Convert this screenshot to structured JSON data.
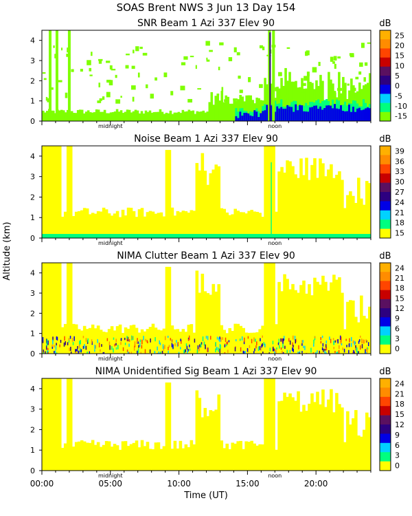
{
  "figure": {
    "title_line1": "SOAS Brent NWS    3 Jun 13 Day 154",
    "ylabel": "Altitude (km)",
    "xlabel": "Time (UT)",
    "x_tick_labels": [
      "00:00",
      "05:00",
      "10:00",
      "15:00",
      "20:00"
    ],
    "midnight_label": "midnight",
    "noon_label": "noon",
    "colorbar_unit": "dB",
    "fill_colors": [
      "#7fff00",
      "#00ff7f",
      "#00d2ff",
      "#0000e6",
      "#2d0080",
      "#ff4500",
      "#ff9900",
      "#ffff00"
    ]
  },
  "chart_data": [
    {
      "type": "heatmap",
      "title": "SNR Beam 1 Azi 337 Elev 90",
      "xlabel": "Time (UT)",
      "ylabel": "Altitude (km)",
      "x_range_hours": [
        0,
        24
      ],
      "ylim": [
        0,
        4.5
      ],
      "y_ticks": [
        "0",
        "1",
        "2",
        "3",
        "4"
      ],
      "colorbar_ticks": [
        "25",
        "20",
        "15",
        "10",
        "5",
        "0",
        "-5",
        "-10",
        "-15"
      ],
      "colorbar_colors": [
        "#ffb000",
        "#ff8c00",
        "#ff4500",
        "#c80000",
        "#5a1060",
        "#2d0080",
        "#0000e6",
        "#00d2ff",
        "#00ff7f",
        "#7fff00"
      ],
      "description_values": {
        "dominant_near_surface_dB": -10,
        "max_dB": 25
      }
    },
    {
      "type": "heatmap",
      "title": "Noise Beam 1 Azi 337 Elev 90",
      "xlabel": "Time (UT)",
      "ylabel": "Altitude (km)",
      "x_range_hours": [
        0,
        24
      ],
      "ylim": [
        0,
        4.5
      ],
      "y_ticks": [
        "0",
        "1",
        "2",
        "3",
        "4"
      ],
      "colorbar_ticks": [
        "39",
        "36",
        "33",
        "30",
        "27",
        "24",
        "21",
        "18",
        "15"
      ],
      "colorbar_colors": [
        "#ffb000",
        "#ff8c00",
        "#ff4500",
        "#c80000",
        "#5a1060",
        "#2d0080",
        "#0000e6",
        "#00d2ff",
        "#00ff7f",
        "#ffff00"
      ],
      "description_values": {
        "dominant_dB": 15
      }
    },
    {
      "type": "heatmap",
      "title": "NIMA Clutter Beam 1 Azi 337 Elev 90",
      "xlabel": "Time (UT)",
      "ylabel": "Altitude (km)",
      "x_range_hours": [
        0,
        24
      ],
      "ylim": [
        0,
        4.5
      ],
      "y_ticks": [
        "0",
        "1",
        "2",
        "3",
        "4"
      ],
      "colorbar_ticks": [
        "24",
        "21",
        "18",
        "15",
        "12",
        "9",
        "6",
        "3",
        "0"
      ],
      "colorbar_colors": [
        "#ffb000",
        "#ff8c00",
        "#ff4500",
        "#c80000",
        "#5a1060",
        "#2d0080",
        "#0000e6",
        "#00d2ff",
        "#00ff7f",
        "#ffff00"
      ],
      "description_values": {
        "dominant_dB": 0
      }
    },
    {
      "type": "heatmap",
      "title": "NIMA Unidentified Sig Beam 1 Azi 337 Elev 90",
      "xlabel": "Time (UT)",
      "ylabel": "Altitude (km)",
      "x_range_hours": [
        0,
        24
      ],
      "ylim": [
        0,
        4.5
      ],
      "y_ticks": [
        "0",
        "1",
        "2",
        "3",
        "4"
      ],
      "colorbar_ticks": [
        "24",
        "21",
        "18",
        "15",
        "12",
        "9",
        "6",
        "3",
        "0"
      ],
      "colorbar_colors": [
        "#ffb000",
        "#ff8c00",
        "#ff4500",
        "#c80000",
        "#5a1060",
        "#2d0080",
        "#0000e6",
        "#00d2ff",
        "#00ff7f",
        "#ffff00"
      ],
      "description_values": {
        "dominant_dB": 0
      }
    }
  ]
}
